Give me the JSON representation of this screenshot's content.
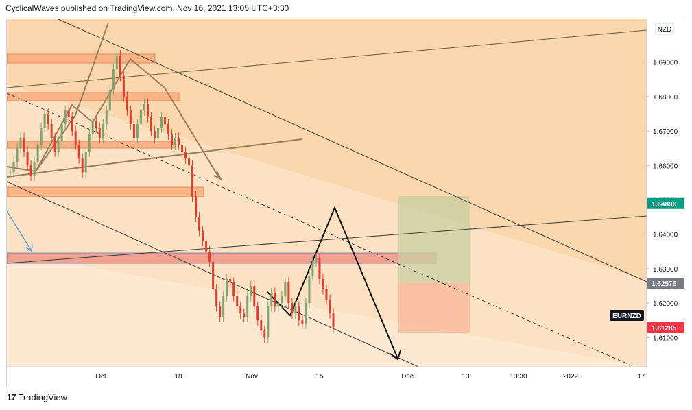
{
  "header": {
    "text": "CyclicalWaves published on TradingView.com, Nov 16, 2021 13:05 UTC+3:30"
  },
  "footer": {
    "logo_glyph": "17",
    "brand": "TradingView"
  },
  "chart_data": {
    "type": "candlestick",
    "currency": "NZD",
    "symbol": "EURNZD",
    "y_ticks": [
      "1.69000",
      "1.68000",
      "1.67000",
      "1.66000",
      "1.65000",
      "1.64000",
      "1.63000",
      "1.62000",
      "1.61000"
    ],
    "y_tick_values": [
      1.69,
      1.68,
      1.67,
      1.66,
      1.65,
      1.64,
      1.63,
      1.62,
      1.61
    ],
    "ylim": [
      1.6015,
      1.7025
    ],
    "x_ticks": [
      "Oct",
      "18",
      "Nov",
      "15",
      "Dec",
      "13",
      "13:30",
      "2022",
      "17"
    ],
    "price_labels": [
      {
        "value": "1.64896",
        "price": 1.64896,
        "color": "#089981"
      },
      {
        "value": "1.62576",
        "price": 1.62576,
        "color": "#787b86"
      },
      {
        "value": "1.61285",
        "price": 1.61285,
        "color": "#f23645"
      }
    ],
    "last_price": 1.61285,
    "series": [
      {
        "values": [
          1.658,
          1.661,
          1.665,
          1.668,
          1.664,
          1.66,
          1.657,
          1.661,
          1.666,
          1.671,
          1.675,
          1.672,
          1.668,
          1.664,
          1.667,
          1.672,
          1.676,
          1.674,
          1.67,
          1.666,
          1.662,
          1.658,
          1.664,
          1.669,
          1.673,
          1.671,
          1.668,
          1.672,
          1.676,
          1.682,
          1.688,
          1.692,
          1.686,
          1.68,
          1.676,
          1.672,
          1.668,
          1.672,
          1.676,
          1.678,
          1.674,
          1.67,
          1.668,
          1.671,
          1.674,
          1.672,
          1.669,
          1.666,
          1.668,
          1.666,
          1.664,
          1.662,
          1.66,
          1.651,
          1.645,
          1.641,
          1.638,
          1.635,
          1.632,
          1.624,
          1.619,
          1.616,
          1.622,
          1.627,
          1.626,
          1.622,
          1.619,
          1.617,
          1.616,
          1.622,
          1.625,
          1.619,
          1.615,
          1.612,
          1.61,
          1.619,
          1.623,
          1.619,
          1.62,
          1.622,
          1.626,
          1.62,
          1.617,
          1.619,
          1.615,
          1.614,
          1.62,
          1.628,
          1.632,
          1.633,
          1.627,
          1.624,
          1.621,
          1.617,
          1.613
        ]
      }
    ]
  }
}
